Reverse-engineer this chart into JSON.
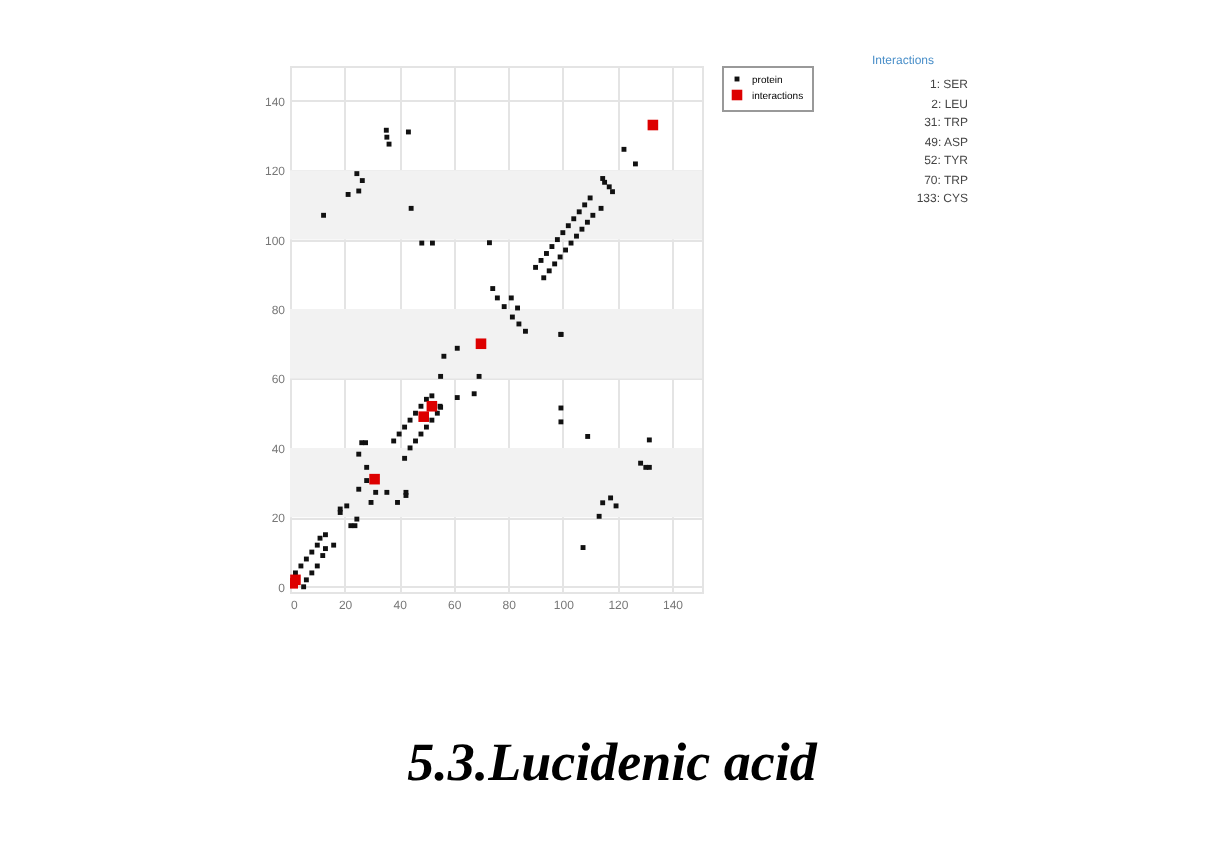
{
  "chart_data": {
    "type": "scatter",
    "title": "5.3.Lucidenic acid",
    "xlim": [
      0,
      151
    ],
    "ylim": [
      -1.5,
      150
    ],
    "xticks": [
      0,
      20,
      40,
      60,
      80,
      100,
      120,
      140
    ],
    "yticks": [
      0,
      20,
      40,
      60,
      80,
      100,
      120,
      140
    ],
    "grid": true,
    "legend": "top right",
    "marker": "square",
    "bands": [
      {
        "axis": "y",
        "from": 20,
        "to": 40,
        "color": "#f2f2f2"
      },
      {
        "axis": "y",
        "from": 60,
        "to": 80,
        "color": "#f2f2f2"
      },
      {
        "axis": "y",
        "from": 100,
        "to": 120,
        "color": "#f2f2f2"
      }
    ],
    "annotations": [
      "Interactions",
      "1: SER",
      "2: LEU",
      "31: TRP",
      "49: ASP",
      "52: TYR",
      "70: TRP",
      "133: CYS"
    ],
    "series": [
      {
        "name": "protein",
        "color": "#111111",
        "x": [
          2,
          4,
          6,
          8,
          10,
          11,
          13,
          5,
          6,
          8,
          10,
          12,
          13,
          16,
          18.4,
          18.4,
          20.8,
          22.3,
          23.8,
          24.5,
          25.2,
          25.2,
          26.3,
          27.7,
          28.1,
          28.1,
          29.7,
          31.4,
          35.5,
          39.4,
          42.5,
          42.5,
          38,
          40,
          42,
          44,
          46,
          48,
          50,
          52,
          42,
          44,
          46,
          48,
          50,
          52,
          54,
          55,
          55.2,
          55.2,
          56.4,
          61.3,
          61.3,
          67.5,
          69.3,
          74.3,
          76,
          78.5,
          81.1,
          83.4,
          81.5,
          83.9,
          86.3,
          99.3,
          99.3,
          99.3,
          99.3,
          109.1,
          131.7,
          128.5,
          130.4,
          131.7,
          117.5,
          114.6,
          119.5,
          113.3,
          107.4,
          90,
          92,
          94,
          96,
          98,
          100,
          102,
          104,
          106,
          108,
          110,
          93,
          95,
          97,
          99,
          101,
          103,
          105,
          107,
          109,
          111,
          114,
          73.1,
          114.6,
          115.3,
          117,
          118.2,
          122.4,
          126.6,
          12.3,
          21.3,
          24.5,
          26.5,
          25.2,
          35.3,
          35.5,
          36.3,
          43.4,
          44.4,
          48.3,
          52.2
        ],
        "values": [
          4,
          6,
          8,
          10,
          12,
          14,
          15,
          0,
          2,
          4,
          6,
          9,
          11,
          12,
          22.4,
          21.4,
          23.3,
          17.6,
          17.6,
          19.5,
          38.2,
          28.1,
          41.5,
          41.5,
          34.4,
          30.6,
          24.3,
          27.2,
          27.2,
          24.3,
          27.2,
          26.3,
          42,
          44,
          46,
          48,
          50,
          52,
          54,
          55,
          37,
          40,
          42,
          44,
          46,
          48,
          50,
          52,
          60.6,
          51.7,
          66.4,
          68.7,
          54.5,
          55.6,
          60.6,
          85.9,
          83.2,
          80.7,
          83.2,
          80.3,
          77.7,
          75.7,
          73.6,
          72.7,
          51.5,
          47.5,
          72.7,
          43.3,
          42.3,
          35.6,
          34.4,
          34.4,
          25.6,
          24.2,
          23.3,
          20.3,
          11.3,
          92,
          94,
          96,
          98,
          100,
          102,
          104,
          106,
          108,
          110,
          112,
          89,
          91,
          93,
          95,
          97,
          99,
          101,
          103,
          105,
          107,
          109,
          99.1,
          117.6,
          116.5,
          115.2,
          113.8,
          126,
          121.8,
          107,
          113,
          119,
          117,
          114,
          131.5,
          129.5,
          127.5,
          131,
          109,
          99,
          99
        ]
      },
      {
        "name": "interactions",
        "color": "#dd0000",
        "x": [
          1,
          2,
          31,
          49,
          52,
          70,
          133
        ],
        "values": [
          1,
          2,
          31,
          49,
          52,
          70,
          133
        ]
      }
    ]
  }
}
